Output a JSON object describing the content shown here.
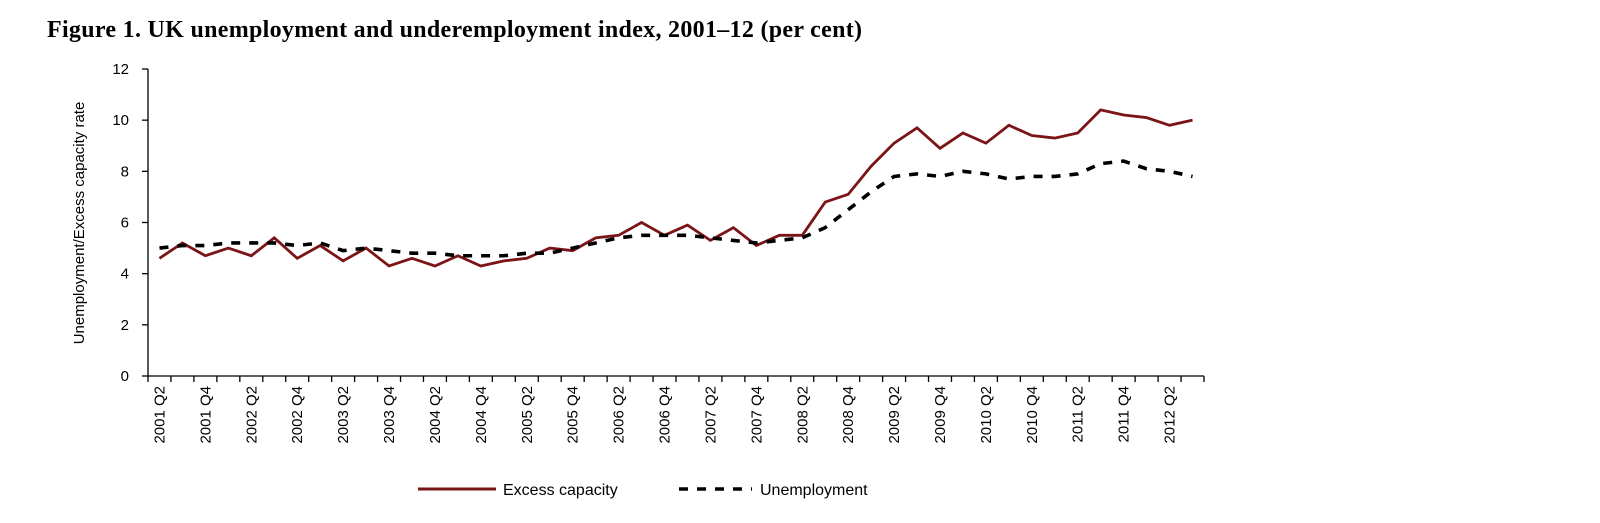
{
  "figure_title": "Figure 1. UK unemployment and underemployment index, 2001–12 (per cent)",
  "chart_data": {
    "type": "line",
    "title": "Figure 1. UK unemployment and underemployment index, 2001–12 (per cent)",
    "xlabel": "",
    "ylabel": "Unemployment/Excess capacity rate",
    "ylim": [
      0,
      12
    ],
    "yticks": [
      0,
      2,
      4,
      6,
      8,
      10,
      12
    ],
    "grid": false,
    "legend_position": "bottom",
    "categories": [
      "2001 Q2",
      "2001 Q3",
      "2001 Q4",
      "2002 Q1",
      "2002 Q2",
      "2002 Q3",
      "2002 Q4",
      "2003 Q1",
      "2003 Q2",
      "2003 Q3",
      "2003 Q4",
      "2004 Q1",
      "2004 Q2",
      "2004 Q3",
      "2004 Q4",
      "2005 Q1",
      "2005 Q2",
      "2005 Q3",
      "2005 Q4",
      "2006 Q1",
      "2006 Q2",
      "2006 Q3",
      "2006 Q4",
      "2007 Q1",
      "2007 Q2",
      "2007 Q3",
      "2007 Q4",
      "2008 Q1",
      "2008 Q2",
      "2008 Q3",
      "2008 Q4",
      "2009 Q1",
      "2009 Q2",
      "2009 Q3",
      "2009 Q4",
      "2010 Q1",
      "2010 Q2",
      "2010 Q3",
      "2010 Q4",
      "2011 Q1",
      "2011 Q2",
      "2011 Q3",
      "2011 Q4",
      "2012 Q1",
      "2012 Q2",
      "2012 Q3"
    ],
    "tick_labels": [
      "2001 Q2",
      "2001 Q4",
      "2002 Q2",
      "2002 Q4",
      "2003 Q2",
      "2003 Q4",
      "2004 Q2",
      "2004 Q4",
      "2005 Q2",
      "2005 Q4",
      "2006 Q2",
      "2006 Q4",
      "2007 Q2",
      "2007 Q4",
      "2008 Q2",
      "2008 Q4",
      "2009 Q2",
      "2009 Q4",
      "2010 Q2",
      "2010 Q4",
      "2011 Q2",
      "2011 Q4",
      "2012 Q2"
    ],
    "series": [
      {
        "name": "Excess capacity",
        "color": "#7b1416",
        "style": "solid",
        "values": [
          4.6,
          5.2,
          4.7,
          5.0,
          4.7,
          5.4,
          4.6,
          5.1,
          4.5,
          5.0,
          4.3,
          4.6,
          4.3,
          4.7,
          4.3,
          4.5,
          4.6,
          5.0,
          4.9,
          5.4,
          5.5,
          6.0,
          5.5,
          5.9,
          5.3,
          5.8,
          5.1,
          5.5,
          5.5,
          6.8,
          7.1,
          8.2,
          9.1,
          9.7,
          8.9,
          9.5,
          9.1,
          9.8,
          9.4,
          9.3,
          9.5,
          10.4,
          10.2,
          10.1,
          9.8,
          10.0
        ]
      },
      {
        "name": "Unemployment",
        "color": "#000000",
        "style": "dashed",
        "values": [
          5.0,
          5.1,
          5.1,
          5.2,
          5.2,
          5.2,
          5.1,
          5.2,
          4.9,
          5.0,
          4.9,
          4.8,
          4.8,
          4.7,
          4.7,
          4.7,
          4.8,
          4.8,
          5.0,
          5.2,
          5.4,
          5.5,
          5.5,
          5.5,
          5.4,
          5.3,
          5.2,
          5.3,
          5.4,
          5.8,
          6.5,
          7.2,
          7.8,
          7.9,
          7.8,
          8.0,
          7.9,
          7.7,
          7.8,
          7.8,
          7.9,
          8.3,
          8.4,
          8.1,
          8.0,
          7.8
        ]
      }
    ]
  }
}
